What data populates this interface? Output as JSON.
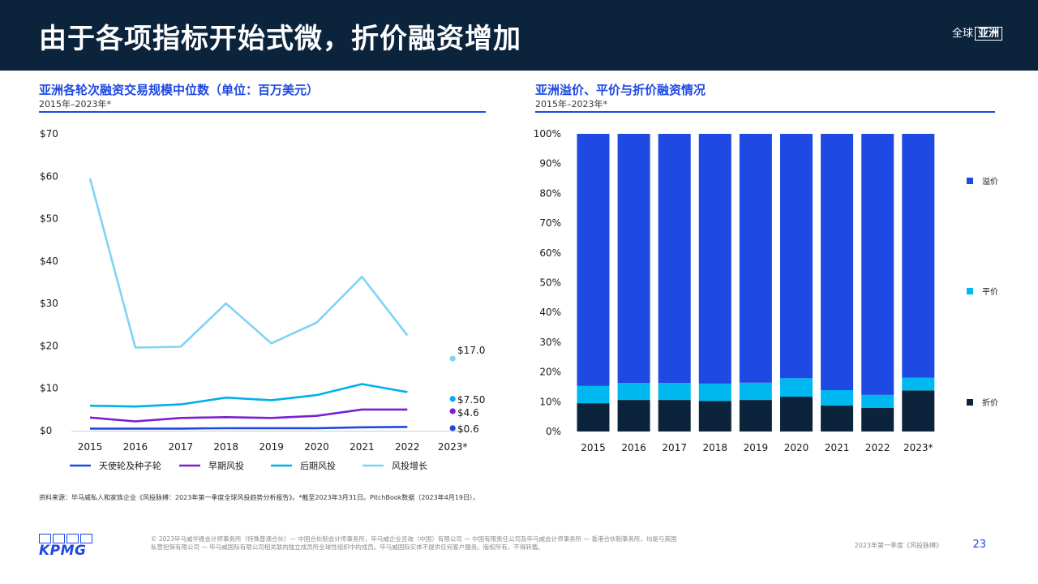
{
  "header": {
    "title": "由于各项指标开始式微，折价融资增加",
    "region_prefix": "全球",
    "region_boxed": "亚洲"
  },
  "colors": {
    "header_bg": "#0c233c",
    "accent": "#1e49e2",
    "angel_seed": "#1e49e2",
    "early": "#7a1fd1",
    "late": "#00b0ea",
    "growth": "#7fd3f7",
    "premium": "#1e49e2",
    "flat": "#00b8f0",
    "down": "#0c233c"
  },
  "left_panel": {
    "title": "亚洲各轮次融资交易规模中位数（单位：百万美元）",
    "subtitle": "2015年–2023年*"
  },
  "right_panel": {
    "title": "亚洲溢价、平价与折价融资情况",
    "subtitle": "2015年–2023年*"
  },
  "chart_data": [
    {
      "type": "line",
      "title": "亚洲各轮次融资交易规模中位数（单位：百万美元）",
      "subtitle": "2015年–2023年*",
      "categories": [
        "2015",
        "2016",
        "2017",
        "2018",
        "2019",
        "2020",
        "2021",
        "2022",
        "2023*"
      ],
      "ylim": [
        0,
        70
      ],
      "yticks": [
        0,
        10,
        20,
        30,
        40,
        50,
        60,
        70
      ],
      "ytick_labels": [
        "$0",
        "$10",
        "$20",
        "$30",
        "$40",
        "$50",
        "$60",
        "$70"
      ],
      "legend_position": "bottom",
      "grid": false,
      "series": [
        {
          "name": "天使轮及种子轮",
          "color": "#1e49e2",
          "values": [
            0.5,
            0.5,
            0.5,
            0.6,
            0.6,
            0.6,
            0.8,
            0.9,
            0.6
          ],
          "last_label": "$0.6"
        },
        {
          "name": "早期风投",
          "color": "#7a1fd1",
          "values": [
            3.1,
            2.2,
            3.0,
            3.2,
            3.0,
            3.5,
            5.0,
            5.0,
            4.6
          ],
          "last_label": "$4.6"
        },
        {
          "name": "后期风投",
          "color": "#00b0ea",
          "values": [
            5.9,
            5.7,
            6.2,
            7.8,
            7.2,
            8.4,
            11.0,
            9.1,
            7.5
          ],
          "last_label": "$7.50"
        },
        {
          "name": "风投增长",
          "color": "#7fd3f7",
          "values": [
            59.5,
            19.6,
            19.8,
            30.0,
            20.6,
            25.5,
            36.3,
            22.5,
            17.0
          ],
          "last_label": "$17.0"
        }
      ],
      "note": "2023* shown as single point markers"
    },
    {
      "type": "bar",
      "stacked": true,
      "title": "亚洲溢价、平价与折价融资情况",
      "subtitle": "2015年–2023年*",
      "categories": [
        "2015",
        "2016",
        "2017",
        "2018",
        "2019",
        "2020",
        "2021",
        "2022",
        "2023*"
      ],
      "ylim": [
        0,
        100
      ],
      "yticks": [
        0,
        10,
        20,
        30,
        40,
        50,
        60,
        70,
        80,
        90,
        100
      ],
      "ytick_labels": [
        "0%",
        "10%",
        "20%",
        "30%",
        "40%",
        "50%",
        "60%",
        "70%",
        "80%",
        "90%",
        "100%"
      ],
      "legend_position": "right",
      "grid": false,
      "series": [
        {
          "name": "折价",
          "color": "#0c233c",
          "values": [
            9.5,
            10.6,
            10.6,
            10.3,
            10.6,
            11.7,
            8.7,
            7.9,
            13.8
          ]
        },
        {
          "name": "平价",
          "color": "#00b8f0",
          "values": [
            5.8,
            5.7,
            5.7,
            5.8,
            5.8,
            6.2,
            5.2,
            4.4,
            4.3
          ]
        },
        {
          "name": "溢价",
          "color": "#1e49e2",
          "values": [
            84.7,
            83.7,
            83.7,
            83.9,
            83.6,
            82.1,
            86.1,
            87.7,
            81.9
          ]
        }
      ],
      "legend_order": [
        "溢价",
        "平价",
        "折价"
      ]
    }
  ],
  "source": "资料来源：毕马威私人和家族企业《风投脉搏：2023年第一季度全球风投趋势分析报告》。*截至2023年3月31日。PitchBook数据（2023年4月19日）。",
  "footer": {
    "logo_text": "KPMG",
    "legal_line1": "© 2023毕马威华振会计师事务所（特殊普通合伙）— 中国合伙制会计师事务所，毕马威企业咨询（中国）有限公司 — 中国有限责任公司及毕马威会计师事务所 — 香港合伙制事务所，均是与英国",
    "legal_line2": "私营担保有限公司 — 毕马威国际有限公司相关联的独立成员所全球性组织中的成员。毕马威国际实体不提供任何客户服务。版权所有，不得转载。",
    "report_name": "2023年第一季度《风投脉搏》",
    "page_number": "23"
  }
}
